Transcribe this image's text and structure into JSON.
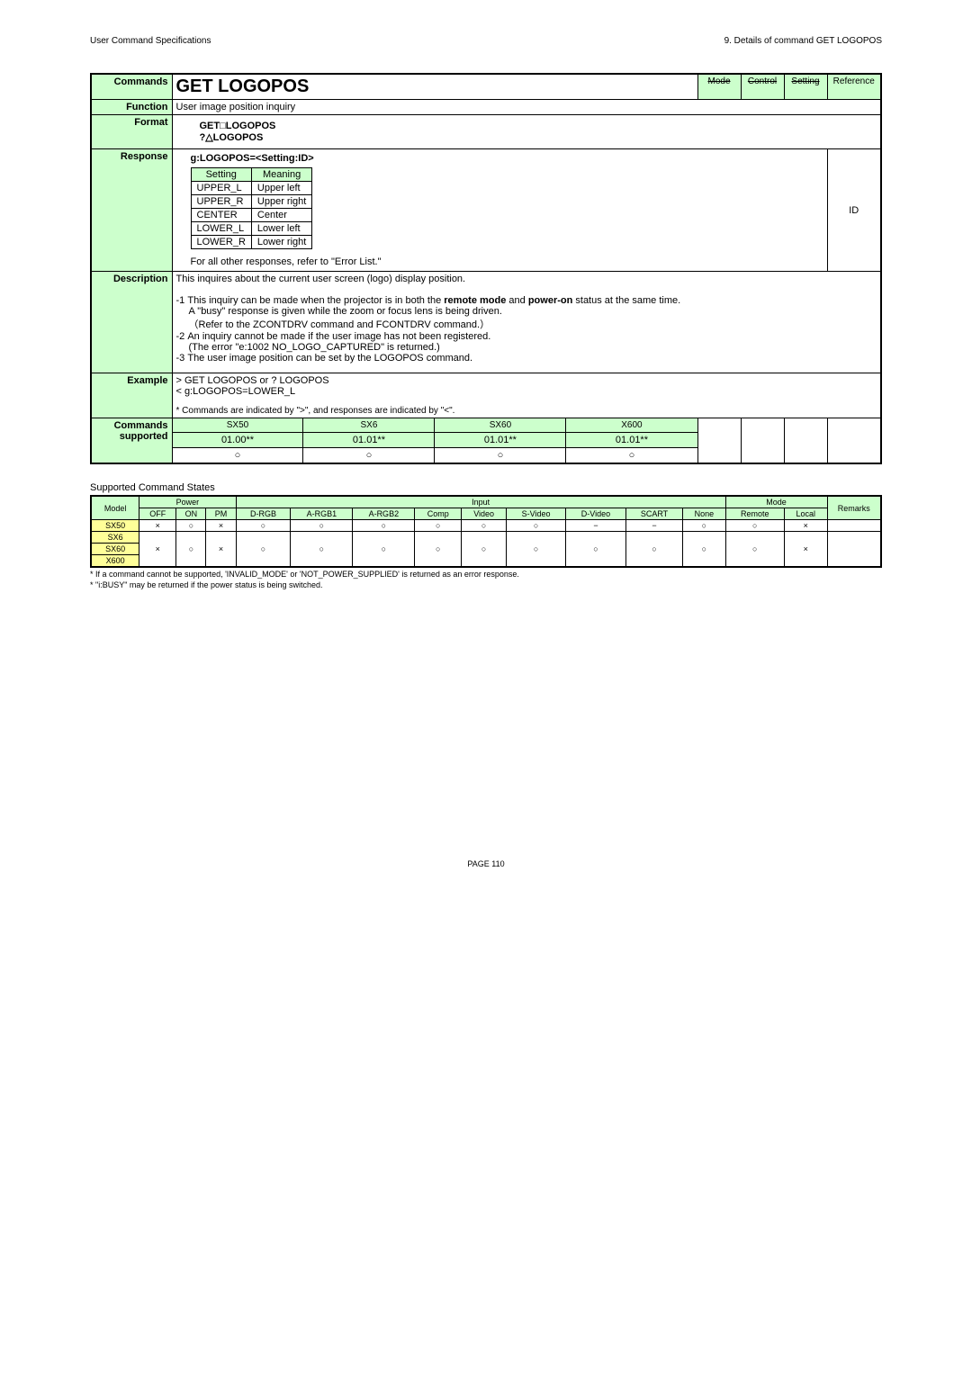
{
  "header": {
    "left": "User Command Specifications",
    "right": "9. Details of command  GET LOGOPOS"
  },
  "cmd": {
    "label": "Commands",
    "title": "GET LOGOPOS",
    "modes": [
      {
        "text": "Mode",
        "strike": true
      },
      {
        "text": "Control",
        "strike": true
      },
      {
        "text": "Setting",
        "strike": true
      },
      {
        "text": "Reference",
        "strike": false
      }
    ]
  },
  "function": {
    "label": "Function",
    "text": "User image position inquiry"
  },
  "format": {
    "label": "Format",
    "line1": "GET□LOGOPOS",
    "line2": "?△LOGOPOS"
  },
  "response": {
    "label": "Response",
    "heading": "g:LOGOPOS=<Setting:ID>",
    "cols": [
      "Setting",
      "Meaning"
    ],
    "rows": [
      [
        "UPPER_L",
        "Upper left"
      ],
      [
        "UPPER_R",
        "Upper right"
      ],
      [
        "CENTER",
        "Center"
      ],
      [
        "LOWER_L",
        "Lower left"
      ],
      [
        "LOWER_R",
        "Lower right"
      ]
    ],
    "footer": "For all other responses, refer to \"Error List.\"",
    "id": "ID"
  },
  "description": {
    "label": "Description",
    "intro": "This inquires about the current user screen (logo) display position.",
    "bullets": [
      {
        "num": "-1",
        "text": "This inquiry can be made when the projector is in both the ",
        "bold1": "remote mode",
        "mid": " and ",
        "bold2": "power-on",
        "tail": " status at the same time."
      },
      {
        "plain": "A \"busy\" response is given while the zoom or focus lens is being driven."
      },
      {
        "plain": "（Refer to the ZCONTDRV command and FCONTDRV command.）"
      },
      {
        "num": "-2",
        "text": "An inquiry cannot be made if the user image has not been registered."
      },
      {
        "plain": "(The error \"e:1002 NO_LOGO_CAPTURED\" is returned.)"
      },
      {
        "num": "-3",
        "text": "The user image position can be set by the LOGOPOS command."
      }
    ]
  },
  "example": {
    "label": "Example",
    "lines": [
      ">  GET LOGOPOS or ? LOGOPOS",
      "<  g:LOGOPOS=LOWER_L"
    ],
    "note": "* Commands are indicated by \">\", and responses are indicated by \"<\"."
  },
  "supported": {
    "label1": "Commands",
    "label2": "supported",
    "headers": [
      "SX50",
      "SX6",
      "SX60",
      "X600"
    ],
    "versions": [
      "01.00**",
      "01.01**",
      "01.01**",
      "01.01**"
    ],
    "marks": [
      "○",
      "○",
      "○",
      "○"
    ]
  },
  "states": {
    "title": "Supported Command States",
    "groupHeaders": [
      "Model",
      "Power",
      "Input",
      "Mode",
      "Remarks"
    ],
    "subHeaders": [
      "OFF",
      "ON",
      "PM",
      "D-RGB",
      "A-RGB1",
      "A-RGB2",
      "Comp",
      "Video",
      "S-Video",
      "D-Video",
      "SCART",
      "None",
      "Remote",
      "Local"
    ],
    "rows": [
      {
        "model": "SX50",
        "cells": [
          "×",
          "○",
          "×",
          "○",
          "○",
          "○",
          "○",
          "○",
          "○",
          "−",
          "−",
          "○",
          "○",
          "×"
        ],
        "rem": ""
      },
      {
        "model": "SX6",
        "cells": [
          "×",
          "○",
          "×",
          "○",
          "○",
          "○",
          "○",
          "○",
          "○",
          "○",
          "○",
          "○",
          "○",
          "×"
        ],
        "rem": ""
      },
      {
        "model": "SX60",
        "cells": [
          "",
          "",
          "",
          "",
          "",
          "",
          "",
          "",
          "",
          "",
          "",
          "",
          "",
          ""
        ],
        "rem": ""
      },
      {
        "model": "X600",
        "cells": [
          "",
          "",
          "",
          "",
          "",
          "",
          "",
          "",
          "",
          "",
          "",
          "",
          "",
          ""
        ],
        "rem": ""
      }
    ],
    "foot1": "* If a command cannot be supported, 'INVALID_MODE' or 'NOT_POWER_SUPPLIED' is returned as an error response.",
    "foot2": "* \"i:BUSY\" may be returned if the power status is being switched."
  },
  "page": "PAGE 110"
}
